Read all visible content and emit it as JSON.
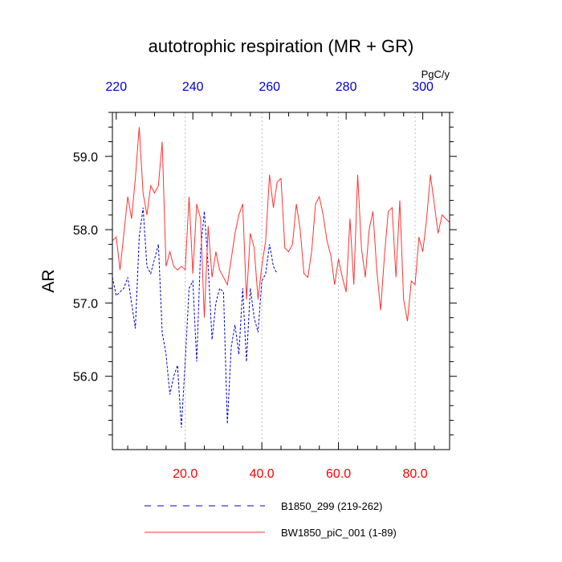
{
  "chart_data": {
    "type": "line",
    "title": "autotrophic respiration (MR + GR)",
    "ylabel": "AR",
    "top_axis_unit": "PgC/y",
    "xlim": [
      1,
      89
    ],
    "ylim": [
      55.0,
      59.6
    ],
    "x_ticks": [
      20,
      40,
      60,
      80
    ],
    "x_tick_labels": [
      "20.0",
      "40.0",
      "60.0",
      "80.0"
    ],
    "y_ticks": [
      56,
      57,
      58,
      59
    ],
    "y_tick_labels": [
      "56.0",
      "57.0",
      "58.0",
      "59.0"
    ],
    "top_ticks": [
      220,
      240,
      260,
      280,
      300
    ],
    "top_tick_labels": [
      "220",
      "240",
      "260",
      "280",
      "300"
    ],
    "top_axis_offset": 218,
    "grid": "vertical-dashed",
    "legend_position": "bottom",
    "colors": {
      "bottom_axis": "#ff0000",
      "top_axis": "#0000cc",
      "series_b": "#0000cc",
      "series_bw": "#ff3333"
    },
    "series": [
      {
        "name": "B1850_299 (219-262)",
        "style": "dashed",
        "color": "#0000cc",
        "x": [
          1,
          2,
          3,
          4,
          5,
          6,
          7,
          8,
          9,
          10,
          11,
          12,
          13,
          14,
          15,
          16,
          17,
          18,
          19,
          20,
          21,
          22,
          23,
          24,
          25,
          26,
          27,
          28,
          29,
          30,
          31,
          32,
          33,
          34,
          35,
          36,
          37,
          38,
          39,
          40,
          41,
          42,
          43,
          44
        ],
        "values": [
          57.35,
          57.1,
          57.15,
          57.2,
          57.35,
          57.0,
          56.65,
          57.9,
          58.3,
          57.5,
          57.4,
          57.6,
          57.8,
          56.6,
          56.3,
          55.75,
          56.0,
          56.15,
          55.3,
          56.2,
          57.2,
          57.3,
          56.2,
          57.7,
          58.25,
          57.5,
          56.5,
          57.0,
          57.2,
          57.15,
          55.35,
          56.4,
          56.7,
          56.3,
          57.2,
          56.2,
          57.2,
          56.8,
          56.6,
          57.3,
          57.4,
          57.8,
          57.5,
          57.4
        ]
      },
      {
        "name": "BW1850_piC_001 (1-89)",
        "style": "solid",
        "color": "#ff3333",
        "x": [
          1,
          2,
          3,
          4,
          5,
          6,
          7,
          8,
          9,
          10,
          11,
          12,
          13,
          14,
          15,
          16,
          17,
          18,
          19,
          20,
          21,
          22,
          23,
          24,
          25,
          26,
          27,
          28,
          29,
          30,
          31,
          32,
          33,
          34,
          35,
          36,
          37,
          38,
          39,
          40,
          41,
          42,
          43,
          44,
          45,
          46,
          47,
          48,
          49,
          50,
          51,
          52,
          53,
          54,
          55,
          56,
          57,
          58,
          59,
          60,
          61,
          62,
          63,
          64,
          65,
          66,
          67,
          68,
          69,
          70,
          71,
          72,
          73,
          74,
          75,
          76,
          77,
          78,
          79,
          80,
          81,
          82,
          83,
          84,
          85,
          86,
          87,
          88,
          89
        ],
        "values": [
          57.85,
          57.9,
          57.45,
          57.95,
          58.45,
          58.15,
          58.7,
          59.4,
          58.5,
          58.2,
          58.6,
          58.5,
          58.6,
          59.2,
          57.5,
          57.7,
          57.5,
          57.45,
          57.5,
          57.45,
          58.45,
          57.4,
          58.35,
          58.15,
          56.8,
          58.05,
          57.35,
          57.7,
          57.45,
          57.35,
          57.25,
          57.6,
          57.95,
          58.2,
          58.35,
          57.05,
          57.95,
          57.75,
          57.05,
          57.5,
          57.85,
          58.75,
          58.3,
          58.65,
          58.7,
          57.75,
          57.7,
          57.8,
          58.35,
          58.0,
          57.4,
          57.35,
          57.7,
          58.35,
          58.45,
          58.2,
          57.85,
          57.65,
          57.25,
          57.6,
          57.35,
          57.15,
          58.15,
          57.25,
          58.75,
          57.75,
          57.35,
          58.0,
          58.25,
          57.45,
          56.9,
          57.65,
          58.25,
          58.3,
          57.35,
          58.4,
          57.05,
          56.75,
          57.3,
          57.25,
          57.9,
          57.7,
          58.15,
          58.75,
          58.35,
          57.95,
          58.2,
          58.15,
          58.1
        ]
      }
    ]
  }
}
